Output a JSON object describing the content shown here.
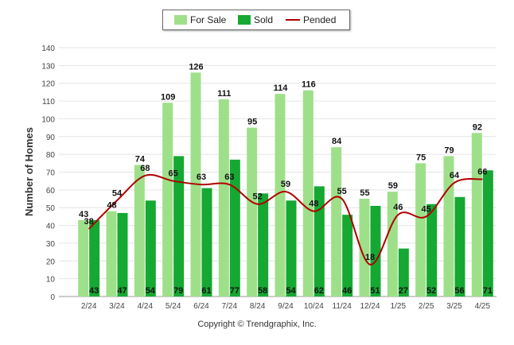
{
  "legend": {
    "for_sale": "For Sale",
    "sold": "Sold",
    "pended": "Pended"
  },
  "footer": {
    "copyright": "Copyright © Trendgraphix, Inc."
  },
  "colors": {
    "for_sale": "#9ee08a",
    "sold": "#15a832",
    "pended": "#b00000",
    "grid": "#e4e4e4"
  },
  "chart_data": {
    "type": "bar",
    "ylabel": "Number of Homes",
    "ylim": [
      0,
      140
    ],
    "yticks": [
      0,
      10,
      20,
      30,
      40,
      50,
      60,
      70,
      80,
      90,
      100,
      110,
      120,
      130,
      140
    ],
    "categories": [
      "2/24",
      "3/24",
      "4/24",
      "5/24",
      "6/24",
      "7/24",
      "8/24",
      "9/24",
      "10/24",
      "11/24",
      "12/24",
      "1/25",
      "2/25",
      "3/25",
      "4/25"
    ],
    "series": [
      {
        "name": "For Sale",
        "type": "bar",
        "values": [
          43,
          48,
          74,
          109,
          126,
          111,
          95,
          114,
          116,
          84,
          55,
          59,
          75,
          79,
          92
        ]
      },
      {
        "name": "Sold",
        "type": "bar",
        "values": [
          43,
          47,
          54,
          79,
          61,
          77,
          58,
          54,
          62,
          46,
          51,
          27,
          52,
          56,
          71
        ]
      },
      {
        "name": "Pended",
        "type": "line",
        "values": [
          38,
          54,
          68,
          65,
          63,
          63,
          52,
          59,
          48,
          55,
          18,
          46,
          45,
          64,
          66
        ]
      }
    ],
    "grid": true,
    "legend_position": "top-center"
  }
}
